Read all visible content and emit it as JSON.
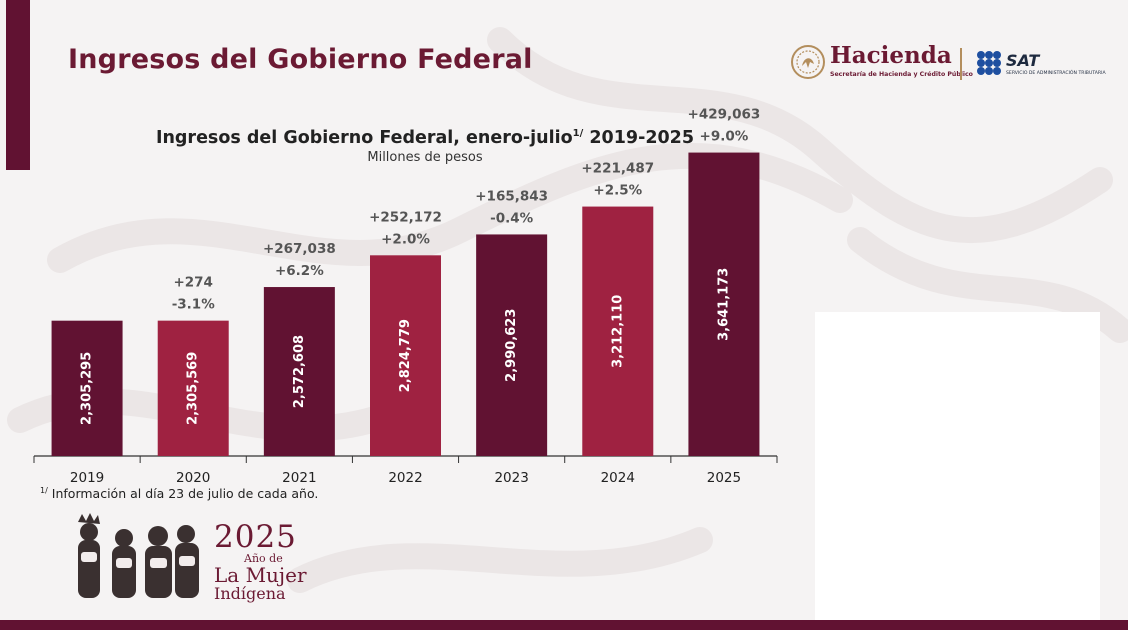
{
  "page": {
    "title": "Ingresos del Gobierno Federal"
  },
  "logos": {
    "hacienda_name": "Hacienda",
    "hacienda_subtitle": "Secretaría de Hacienda y Crédito Público",
    "sat_name": "SAT",
    "sat_subtitle": "SERVICIO DE ADMINISTRACIÓN TRIBUTARIA"
  },
  "chart_data": {
    "type": "bar",
    "title": "Ingresos del Gobierno Federal, enero-julio",
    "title_superscript": "1/",
    "title_suffix": "2019-2025",
    "subtitle": "Millones de pesos",
    "categories": [
      "2019",
      "2020",
      "2021",
      "2022",
      "2023",
      "2024",
      "2025"
    ],
    "values": [
      2305295,
      2305569,
      2572608,
      2824779,
      2990623,
      3212110,
      3641173
    ],
    "value_labels": [
      "2,305,295",
      "2,305,569",
      "2,572,608",
      "2,824,779",
      "2,990,623",
      "3,212,110",
      "3,641,173"
    ],
    "change_abs": [
      "",
      "+274",
      "+267,038",
      "+252,172",
      "+165,843",
      "+221,487",
      "+429,063"
    ],
    "change_pct": [
      "",
      "-3.1%",
      "+6.2%",
      "+2.0%",
      "-0.4%",
      "+2.5%",
      "+9.0%"
    ],
    "bar_colors": [
      "#611232",
      "#9f2241",
      "#611232",
      "#9f2241",
      "#611232",
      "#9f2241",
      "#611232"
    ],
    "ylim": [
      1230000,
      3900000
    ],
    "grid": false,
    "legend": "none"
  },
  "footnote": {
    "marker": "1/",
    "text": "Información al día 23 de julio de cada año."
  },
  "badge": {
    "year": "2025",
    "line1": "Año de",
    "line2": "La Mujer",
    "line3": "Indígena"
  },
  "colors": {
    "primary": "#611232",
    "secondary": "#9f2241",
    "gold": "#b38e5d"
  }
}
